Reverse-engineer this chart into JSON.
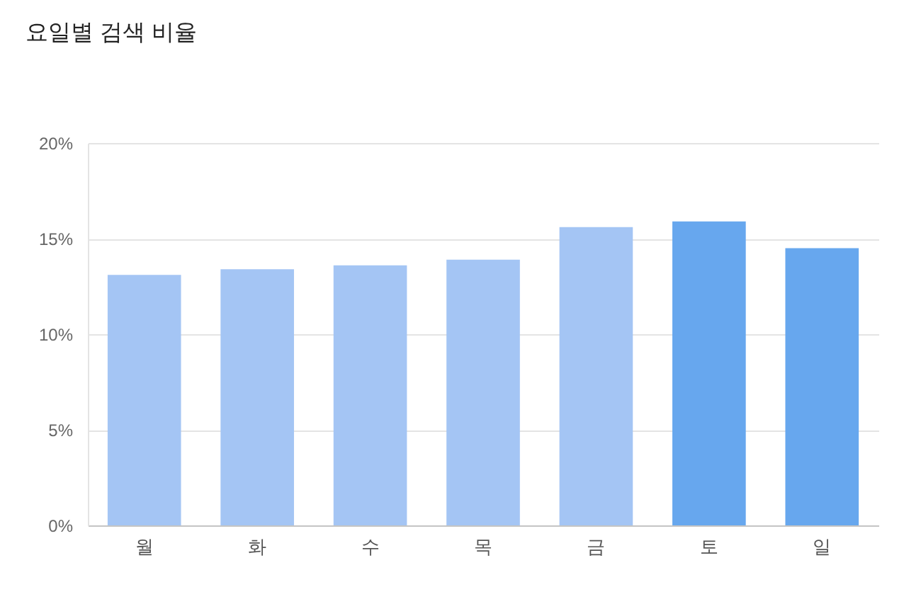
{
  "chart_data": {
    "type": "bar",
    "title": "요일별 검색 비율",
    "categories": [
      "월",
      "화",
      "수",
      "목",
      "금",
      "토",
      "일"
    ],
    "values": [
      13.1,
      13.4,
      13.6,
      13.9,
      15.6,
      15.9,
      14.5
    ],
    "colors": [
      "#a4c5f4",
      "#a4c5f4",
      "#a4c5f4",
      "#a4c5f4",
      "#a4c5f4",
      "#67a7ee",
      "#67a7ee"
    ],
    "ylim": [
      0,
      20
    ],
    "yticks": [
      {
        "value": 0,
        "label": "0%"
      },
      {
        "value": 5,
        "label": "5%"
      },
      {
        "value": 10,
        "label": "10%"
      },
      {
        "value": 15,
        "label": "15%"
      },
      {
        "value": 20,
        "label": "20%"
      }
    ],
    "grid": "y"
  }
}
